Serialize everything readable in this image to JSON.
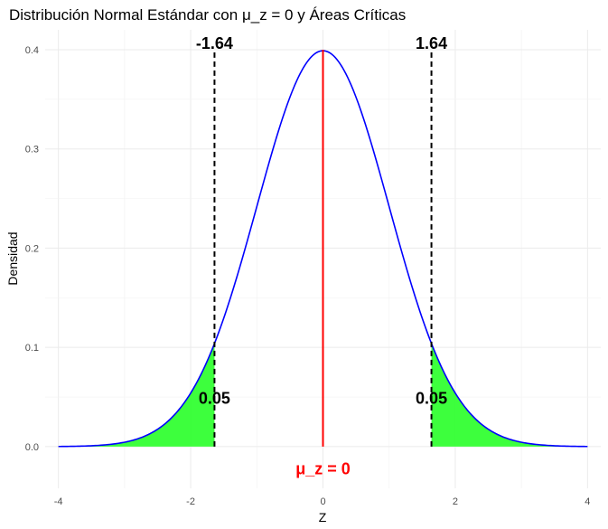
{
  "chart_data": {
    "type": "area",
    "title": "Distribución Normal Estándar con μ_z = 0 y Áreas Críticas",
    "xlabel": "Z",
    "ylabel": "Densidad",
    "xlim": [
      -4.2,
      4.2
    ],
    "ylim": [
      -0.042,
      0.42
    ],
    "x_ticks": [
      "-4",
      "-2",
      "0",
      "2",
      "4"
    ],
    "x_tick_values": [
      -4,
      -2,
      0,
      2,
      4
    ],
    "y_ticks": [
      "0.0",
      "0.1",
      "0.2",
      "0.3",
      "0.4"
    ],
    "y_tick_values": [
      0,
      0.1,
      0.2,
      0.3,
      0.4
    ],
    "grid": true,
    "series": [
      {
        "distribution": "normal",
        "mean": 0,
        "sd": 1,
        "x_range": [
          -4,
          4
        ],
        "color": "#0000ff"
      }
    ],
    "shaded_regions": [
      {
        "x_range": [
          -4,
          -1.64
        ],
        "color": "#33ff33",
        "label": "0.05"
      },
      {
        "x_range": [
          1.64,
          4
        ],
        "color": "#33ff33",
        "label": "0.05"
      }
    ],
    "critical_lines": [
      {
        "x": -1.64,
        "label": "-1.64",
        "style": "dashed",
        "color": "#000000"
      },
      {
        "x": 1.64,
        "label": "1.64",
        "style": "dashed",
        "color": "#000000"
      }
    ],
    "mean_line": {
      "x": 0,
      "label": "μ_z = 0",
      "color": "#ff0000"
    }
  }
}
